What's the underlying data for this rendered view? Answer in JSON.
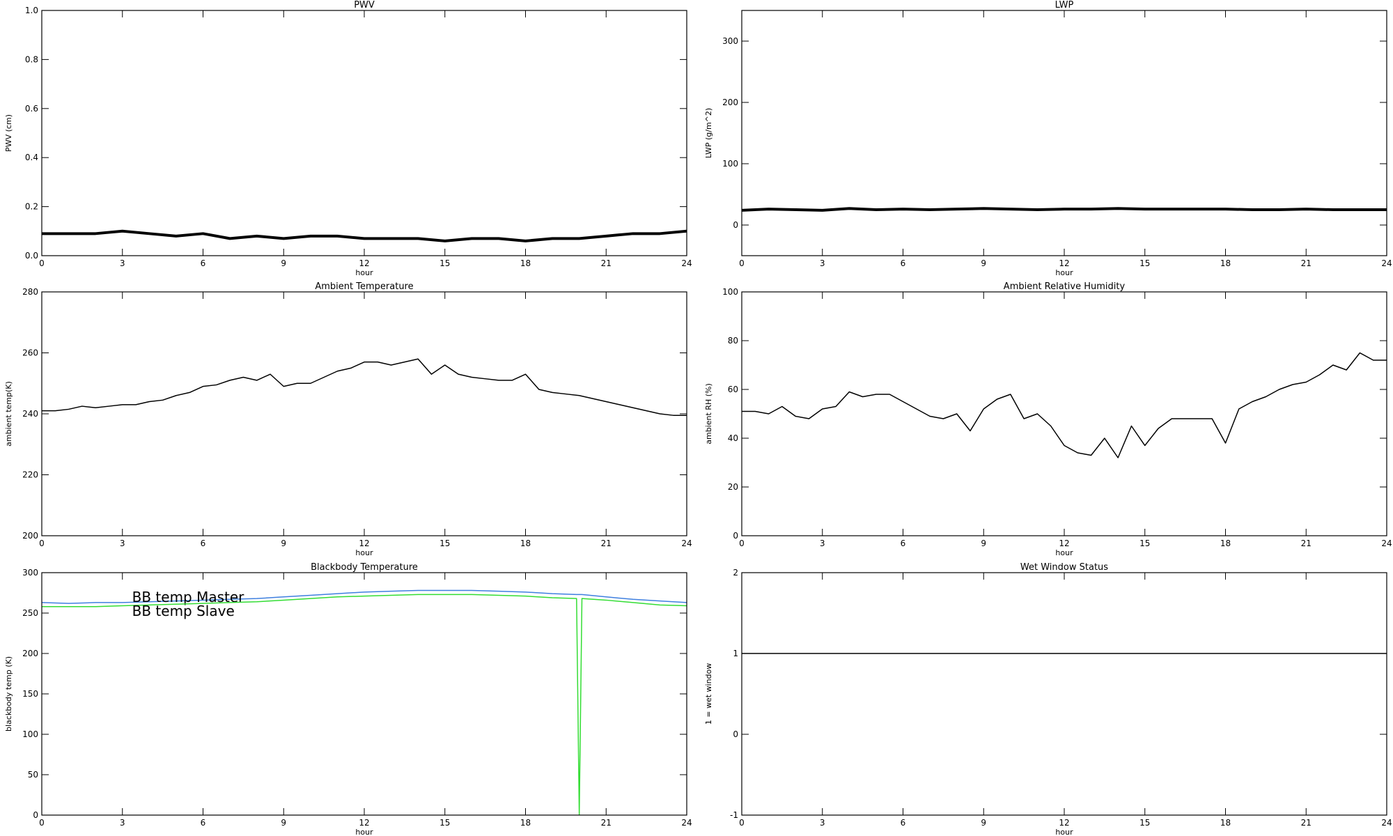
{
  "chart_data": [
    {
      "type": "line",
      "title": "PWV",
      "xlabel": "hour",
      "ylabel": "PWV (cm)",
      "x": [
        0,
        1,
        2,
        3,
        4,
        5,
        6,
        7,
        8,
        9,
        10,
        11,
        12,
        13,
        14,
        15,
        16,
        17,
        18,
        19,
        20,
        21,
        22,
        23,
        24
      ],
      "values": [
        0.09,
        0.09,
        0.09,
        0.1,
        0.09,
        0.08,
        0.09,
        0.07,
        0.08,
        0.07,
        0.08,
        0.08,
        0.07,
        0.07,
        0.07,
        0.06,
        0.07,
        0.07,
        0.06,
        0.07,
        0.07,
        0.08,
        0.09,
        0.09,
        0.1
      ],
      "color": "#000000",
      "line_width": 4,
      "xlim": [
        0,
        24
      ],
      "xticks": [
        0,
        3,
        6,
        9,
        12,
        15,
        18,
        21,
        24
      ],
      "ylim": [
        0,
        1
      ],
      "yticks": [
        {
          "value": 0,
          "label": "0.0"
        },
        0.2,
        0.4,
        0.6,
        0.8,
        {
          "value": 1,
          "label": "1.0"
        }
      ]
    },
    {
      "type": "line",
      "title": "LWP",
      "xlabel": "hour",
      "ylabel": "LWP (g/m^2)",
      "x": [
        0,
        1,
        2,
        3,
        4,
        5,
        6,
        7,
        8,
        9,
        10,
        11,
        12,
        13,
        14,
        15,
        16,
        17,
        18,
        19,
        20,
        21,
        22,
        23,
        24
      ],
      "values": [
        24,
        26,
        25,
        24,
        27,
        25,
        26,
        25,
        26,
        27,
        26,
        25,
        26,
        26,
        27,
        26,
        26,
        26,
        26,
        25,
        25,
        26,
        25,
        25,
        25
      ],
      "color": "#000000",
      "line_width": 4,
      "xlim": [
        0,
        24
      ],
      "xticks": [
        0,
        3,
        6,
        9,
        12,
        15,
        18,
        21,
        24
      ],
      "ylim": [
        -50,
        350
      ],
      "yticks": [
        0,
        100,
        200,
        300
      ]
    },
    {
      "type": "line",
      "title": "Ambient Temperature",
      "xlabel": "hour",
      "ylabel": "ambient temp(K)",
      "x": [
        0,
        0.5,
        1,
        1.5,
        2,
        2.5,
        3,
        3.5,
        4,
        4.5,
        5,
        5.5,
        6,
        6.5,
        7,
        7.5,
        8,
        8.5,
        9,
        9.5,
        10,
        10.5,
        11,
        11.5,
        12,
        12.5,
        13,
        13.5,
        14,
        14.5,
        15,
        15.5,
        16,
        16.5,
        17,
        17.5,
        18,
        18.5,
        19,
        19.5,
        20,
        20.5,
        21,
        21.5,
        22,
        22.5,
        23,
        23.5,
        24
      ],
      "values": [
        241,
        241,
        241.5,
        242.5,
        242,
        242.5,
        243,
        243,
        244,
        244.5,
        246,
        247,
        249,
        249.5,
        251,
        252,
        251,
        253,
        249,
        250,
        250,
        252,
        254,
        255,
        257,
        257,
        256,
        257,
        258,
        253,
        256,
        253,
        252,
        251.5,
        251,
        251,
        253,
        248,
        247,
        246.5,
        246,
        245,
        244,
        243,
        242,
        241,
        240,
        239.5,
        239.5
      ],
      "color": "#000000",
      "line_width": 1.5,
      "xlim": [
        0,
        24
      ],
      "xticks": [
        0,
        3,
        6,
        9,
        12,
        15,
        18,
        21,
        24
      ],
      "ylim": [
        200,
        280
      ],
      "yticks": [
        200,
        220,
        240,
        260,
        280
      ]
    },
    {
      "type": "line",
      "title": "Ambient Relative Humidity",
      "xlabel": "hour",
      "ylabel": "ambient RH (%)",
      "x": [
        0,
        0.5,
        1,
        1.5,
        2,
        2.5,
        3,
        3.5,
        4,
        4.5,
        5,
        5.5,
        6,
        6.5,
        7,
        7.5,
        8,
        8.5,
        9,
        9.5,
        10,
        10.5,
        11,
        11.5,
        12,
        12.5,
        13,
        13.5,
        14,
        14.5,
        15,
        15.5,
        16,
        16.5,
        17,
        17.5,
        18,
        18.5,
        19,
        19.5,
        20,
        20.5,
        21,
        21.5,
        22,
        22.5,
        23,
        23.5,
        24
      ],
      "values": [
        51,
        51,
        50,
        53,
        49,
        48,
        52,
        53,
        59,
        57,
        58,
        58,
        55,
        52,
        49,
        48,
        50,
        43,
        52,
        56,
        58,
        48,
        50,
        45,
        37,
        34,
        33,
        40,
        32,
        45,
        37,
        44,
        48,
        48,
        48,
        48,
        38,
        52,
        55,
        57,
        60,
        62,
        63,
        66,
        70,
        68,
        75,
        72,
        72
      ],
      "color": "#000000",
      "line_width": 1.5,
      "xlim": [
        0,
        24
      ],
      "xticks": [
        0,
        3,
        6,
        9,
        12,
        15,
        18,
        21,
        24
      ],
      "ylim": [
        0,
        100
      ],
      "yticks": [
        0,
        20,
        40,
        60,
        80,
        100
      ]
    },
    {
      "type": "line",
      "title": "Blackbody Temperature",
      "xlabel": "hour",
      "ylabel": "blackbody temp (K)",
      "x": [
        0,
        1,
        2,
        3,
        4,
        5,
        6,
        7,
        8,
        9,
        10,
        11,
        12,
        13,
        14,
        15,
        16,
        17,
        18,
        19,
        19.9,
        20,
        20.1,
        21,
        22,
        23,
        24
      ],
      "series": [
        {
          "name": "BB temp Master",
          "color": "#3f7fe0",
          "values": [
            263,
            262,
            263,
            263,
            264,
            265,
            266,
            267,
            268,
            270,
            272,
            274,
            276,
            277,
            278,
            278,
            278,
            277,
            276,
            274,
            273,
            273,
            273,
            270,
            267,
            265,
            263
          ]
        },
        {
          "name": "BB temp Slave",
          "color": "#33dd33",
          "values": [
            258,
            258,
            258,
            259,
            260,
            261,
            262,
            263,
            264,
            266,
            268,
            270,
            271,
            272,
            273,
            273,
            273,
            272,
            271,
            269,
            268,
            0,
            268,
            266,
            263,
            260,
            259
          ]
        }
      ],
      "line_width": 1.5,
      "legend": "upper left",
      "xlim": [
        0,
        24
      ],
      "xticks": [
        0,
        3,
        6,
        9,
        12,
        15,
        18,
        21,
        24
      ],
      "ylim": [
        0,
        300
      ],
      "yticks": [
        0,
        50,
        100,
        150,
        200,
        250,
        300
      ]
    },
    {
      "type": "line",
      "title": "Wet Window Status",
      "xlabel": "hour",
      "ylabel": "1 = wet window",
      "x": [
        0,
        24
      ],
      "values": [
        1,
        1
      ],
      "color": "#000000",
      "line_width": 1.5,
      "xlim": [
        0,
        24
      ],
      "xticks": [
        0,
        3,
        6,
        9,
        12,
        15,
        18,
        21,
        24
      ],
      "ylim": [
        -1,
        2
      ],
      "yticks": [
        -1,
        0,
        1,
        2
      ]
    }
  ]
}
